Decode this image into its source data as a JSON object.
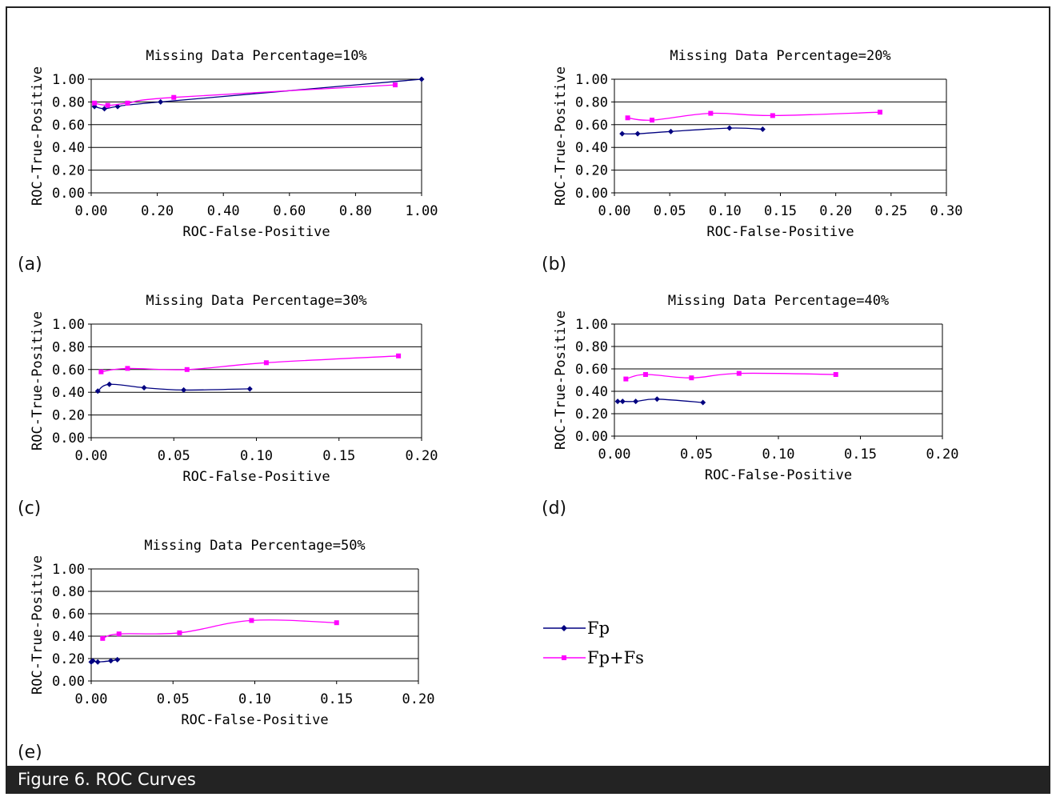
{
  "colors": {
    "fp": "#000080",
    "fpfs": "#ff00ff",
    "grid": "#000000"
  },
  "legend": {
    "entries": [
      "Fp",
      "Fp+Fs"
    ]
  },
  "panels": [
    {
      "letter": "(a)",
      "title": "Missing Data Percentage=10%",
      "xlabel": "ROC-False-Positive",
      "ylabel": "ROC-True-Positive"
    },
    {
      "letter": "(b)",
      "title": "Missing Data Percentage=20%",
      "xlabel": "ROC-False-Positive",
      "ylabel": "ROC-True-Positive"
    },
    {
      "letter": "(c)",
      "title": "Missing Data Percentage=30%",
      "xlabel": "ROC-False-Positive",
      "ylabel": "ROC-True-Positive"
    },
    {
      "letter": "(d)",
      "title": "Missing Data Percentage=40%",
      "xlabel": "ROC-False-Positive",
      "ylabel": "ROC-True-Positive"
    },
    {
      "letter": "(e)",
      "title": "Missing Data Percentage=50%",
      "xlabel": "ROC-False-Positive",
      "ylabel": "ROC-True-Positive"
    }
  ],
  "caption": "Figure 6. ROC Curves",
  "chart_data": [
    {
      "type": "line",
      "title": "Missing Data Percentage=10%",
      "xlabel": "ROC-False-Positive",
      "ylabel": "ROC-True-Positive",
      "xlim": [
        0,
        1.0
      ],
      "ylim": [
        0,
        1.0
      ],
      "xticks": [
        "0.00",
        "0.20",
        "0.40",
        "0.60",
        "0.80",
        "1.00"
      ],
      "yticks": [
        "0.00",
        "0.20",
        "0.40",
        "0.60",
        "0.80",
        "1.00"
      ],
      "grid": "horizontal",
      "series": [
        {
          "name": "Fp",
          "x": [
            0.01,
            0.04,
            0.08,
            0.21,
            1.0
          ],
          "y": [
            0.76,
            0.74,
            0.76,
            0.8,
            1.0
          ]
        },
        {
          "name": "Fp+Fs",
          "x": [
            0.01,
            0.05,
            0.11,
            0.25,
            0.92
          ],
          "y": [
            0.79,
            0.77,
            0.79,
            0.84,
            0.95
          ]
        }
      ]
    },
    {
      "type": "line",
      "title": "Missing Data Percentage=20%",
      "xlabel": "ROC-False-Positive",
      "ylabel": "ROC-True-Positive",
      "xlim": [
        0,
        0.3
      ],
      "ylim": [
        0,
        1.0
      ],
      "xticks": [
        "0.00",
        "0.05",
        "0.10",
        "0.15",
        "0.20",
        "0.25",
        "0.30"
      ],
      "yticks": [
        "0.00",
        "0.20",
        "0.40",
        "0.60",
        "0.80",
        "1.00"
      ],
      "grid": "horizontal",
      "series": [
        {
          "name": "Fp",
          "x": [
            0.007,
            0.021,
            0.051,
            0.104,
            0.134
          ],
          "y": [
            0.52,
            0.52,
            0.54,
            0.57,
            0.56
          ]
        },
        {
          "name": "Fp+Fs",
          "x": [
            0.012,
            0.034,
            0.087,
            0.143,
            0.24
          ],
          "y": [
            0.66,
            0.64,
            0.7,
            0.68,
            0.71
          ]
        }
      ]
    },
    {
      "type": "line",
      "title": "Missing Data Percentage=30%",
      "xlabel": "ROC-False-Positive",
      "ylabel": "ROC-True-Positive",
      "xlim": [
        0,
        0.2
      ],
      "ylim": [
        0,
        1.0
      ],
      "xticks": [
        "0.00",
        "0.05",
        "0.10",
        "0.15",
        "0.20"
      ],
      "yticks": [
        "0.00",
        "0.20",
        "0.40",
        "0.60",
        "0.80",
        "1.00"
      ],
      "grid": "horizontal",
      "series": [
        {
          "name": "Fp",
          "x": [
            0.004,
            0.011,
            0.032,
            0.056,
            0.096
          ],
          "y": [
            0.41,
            0.47,
            0.44,
            0.42,
            0.43
          ]
        },
        {
          "name": "Fp+Fs",
          "x": [
            0.006,
            0.022,
            0.058,
            0.106,
            0.186
          ],
          "y": [
            0.58,
            0.61,
            0.6,
            0.66,
            0.72
          ]
        }
      ]
    },
    {
      "type": "line",
      "title": "Missing Data Percentage=40%",
      "xlabel": "ROC-False-Positive",
      "ylabel": "ROC-True-Positive",
      "xlim": [
        0,
        0.2
      ],
      "ylim": [
        0,
        1.0
      ],
      "xticks": [
        "0.00",
        "0.05",
        "0.10",
        "0.15",
        "0.20"
      ],
      "yticks": [
        "0.00",
        "0.20",
        "0.40",
        "0.60",
        "0.80",
        "1.00"
      ],
      "grid": "horizontal",
      "series": [
        {
          "name": "Fp",
          "x": [
            0.002,
            0.005,
            0.013,
            0.026,
            0.054
          ],
          "y": [
            0.31,
            0.31,
            0.31,
            0.33,
            0.3
          ]
        },
        {
          "name": "Fp+Fs",
          "x": [
            0.007,
            0.019,
            0.047,
            0.076,
            0.135
          ],
          "y": [
            0.51,
            0.55,
            0.52,
            0.56,
            0.55
          ]
        }
      ]
    },
    {
      "type": "line",
      "title": "Missing Data Percentage=50%",
      "xlabel": "ROC-False-Positive",
      "ylabel": "ROC-True-Positive",
      "xlim": [
        0,
        0.2
      ],
      "ylim": [
        0,
        1.0
      ],
      "xticks": [
        "0.00",
        "0.05",
        "0.10",
        "0.15",
        "0.20"
      ],
      "yticks": [
        "0.00",
        "0.20",
        "0.40",
        "0.60",
        "0.80",
        "1.00"
      ],
      "grid": "horizontal",
      "series": [
        {
          "name": "Fp",
          "x": [
            0.0,
            0.001,
            0.004,
            0.012,
            0.016
          ],
          "y": [
            0.17,
            0.18,
            0.17,
            0.18,
            0.19
          ]
        },
        {
          "name": "Fp+Fs",
          "x": [
            0.007,
            0.017,
            0.054,
            0.098,
            0.15
          ],
          "y": [
            0.38,
            0.42,
            0.43,
            0.54,
            0.52
          ]
        }
      ]
    }
  ]
}
